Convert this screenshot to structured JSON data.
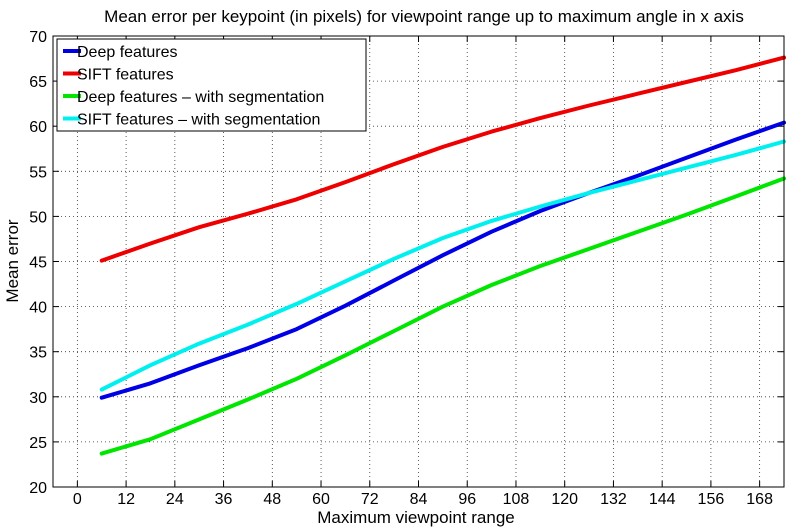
{
  "chart_data": {
    "type": "line",
    "title": "Mean error per keypoint (in pixels) for viewpoint range up to maximum angle in x axis",
    "xlabel": "Maximum viewpoint range",
    "ylabel": "Mean error",
    "xlim": [
      -6,
      174
    ],
    "ylim": [
      20,
      70
    ],
    "xticks": [
      0,
      12,
      24,
      36,
      48,
      60,
      72,
      84,
      96,
      108,
      120,
      132,
      144,
      156,
      168
    ],
    "yticks": [
      20,
      25,
      30,
      35,
      40,
      45,
      50,
      55,
      60,
      65,
      70
    ],
    "grid": true,
    "legend_position": "top-left",
    "x": [
      6,
      18,
      30,
      42,
      54,
      66,
      78,
      90,
      102,
      114,
      126,
      138,
      150,
      162,
      174
    ],
    "series": [
      {
        "name": "Deep features",
        "color": "#0000e6",
        "values": [
          29.9,
          31.5,
          33.5,
          35.4,
          37.5,
          40.1,
          42.9,
          45.7,
          48.3,
          50.6,
          52.6,
          54.5,
          56.5,
          58.5,
          60.4
        ]
      },
      {
        "name": "SIFT features",
        "color": "#ee0000",
        "values": [
          45.1,
          47.0,
          48.8,
          50.3,
          51.9,
          53.8,
          55.8,
          57.7,
          59.4,
          60.9,
          62.3,
          63.6,
          64.9,
          66.2,
          67.6
        ]
      },
      {
        "name": "Deep features – with segmentation",
        "color": "#00e600",
        "values": [
          23.7,
          25.3,
          27.5,
          29.7,
          32.0,
          34.6,
          37.3,
          40.0,
          42.4,
          44.5,
          46.4,
          48.3,
          50.2,
          52.2,
          54.2
        ]
      },
      {
        "name": "SIFT features – with segmentation",
        "color": "#00f0f0",
        "values": [
          30.8,
          33.5,
          35.9,
          38.0,
          40.3,
          42.8,
          45.3,
          47.6,
          49.5,
          51.1,
          52.6,
          54.0,
          55.4,
          56.8,
          58.3
        ]
      }
    ]
  }
}
